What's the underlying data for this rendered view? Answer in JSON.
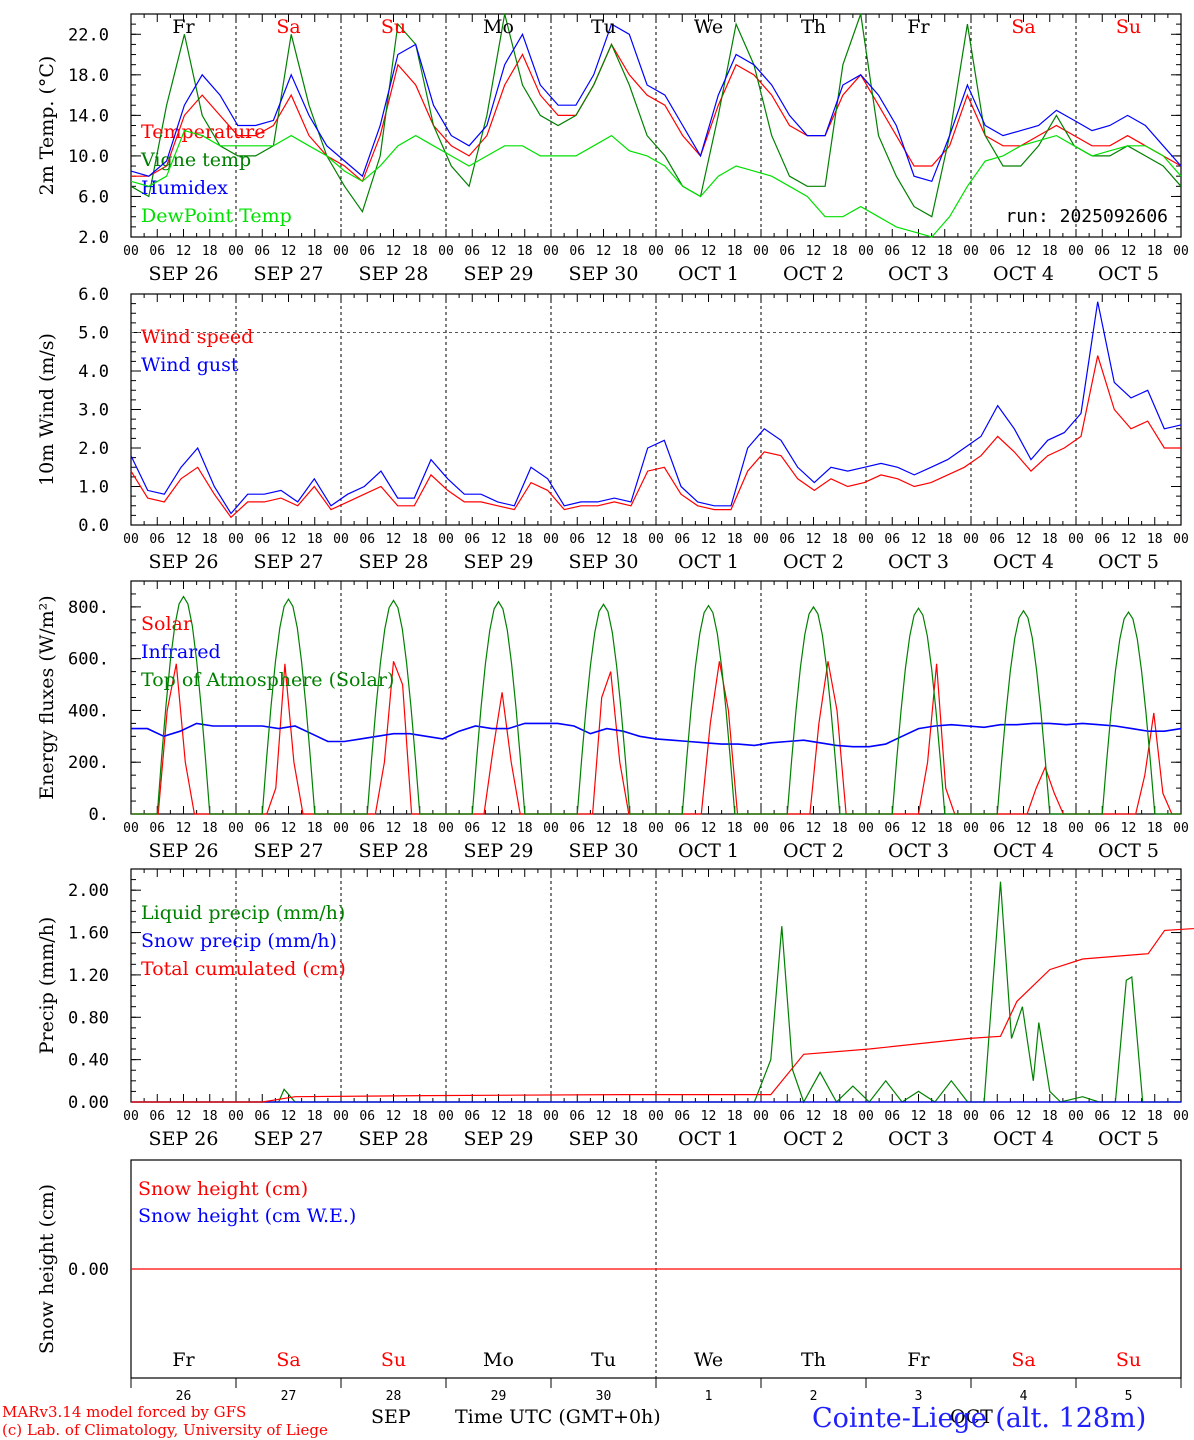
{
  "x_axis": {
    "start_tick": 0,
    "step_hours": 6,
    "hour_labels": [
      "00",
      "06",
      "12",
      "18"
    ],
    "date_labels": [
      "SEP 26",
      "SEP 27",
      "SEP 28",
      "SEP 29",
      "SEP 30",
      "OCT  1",
      "OCT  2",
      "OCT  3",
      "OCT  4",
      "OCT  5"
    ],
    "day_abbrev": [
      "Fr",
      "Sa",
      "Su",
      "Mo",
      "Tu",
      "We",
      "Th",
      "Fr",
      "Sa",
      "Su"
    ],
    "weekend_flags": [
      false,
      true,
      true,
      false,
      false,
      false,
      false,
      false,
      true,
      true
    ],
    "day_numbers": [
      "26",
      "27",
      "28",
      "29",
      "30",
      "1",
      "2",
      "3",
      "4",
      "5"
    ]
  },
  "colors": {
    "red": "#ff0000",
    "green": "#008000",
    "blue": "#0000ff",
    "lime": "#00e000",
    "axis": "#000000"
  },
  "chart_data": [
    {
      "type": "line",
      "id": "temperature",
      "ylabel": "2m Temp. (°C)",
      "ylim": [
        2,
        24
      ],
      "yticks": [
        "2.0",
        "6.0",
        "10.0",
        "14.0",
        "18.0",
        "22.0"
      ],
      "ytick_values": [
        2,
        6,
        10,
        14,
        18,
        22
      ],
      "annotation": "run: 2025092606",
      "series": [
        {
          "name": "Temperature",
          "color": "#ff0000",
          "values": [
            8,
            8,
            9,
            14,
            16,
            14,
            12,
            12,
            13,
            16,
            12,
            10,
            9,
            7.5,
            12,
            19,
            17,
            13,
            11,
            10,
            12,
            17,
            20,
            16,
            14,
            14,
            17,
            21,
            18,
            16,
            15,
            12,
            10,
            15,
            19,
            18,
            16,
            13,
            12,
            12,
            16,
            18,
            15,
            12,
            9,
            9,
            11,
            16,
            12,
            11,
            11,
            12,
            13,
            12,
            11,
            11,
            12,
            11,
            10,
            9
          ]
        },
        {
          "name": "Vigne temp",
          "color": "#008000",
          "values": [
            7,
            6,
            15,
            22,
            14,
            11,
            10,
            10,
            11,
            22,
            15,
            10,
            7,
            4.5,
            10,
            23,
            21,
            13,
            9,
            7,
            14,
            24,
            17,
            14,
            13,
            14,
            17,
            21,
            17,
            12,
            10,
            7,
            6,
            14,
            23,
            19,
            12,
            8,
            7,
            7,
            19,
            24,
            12,
            8,
            5,
            4,
            12,
            23,
            12,
            9,
            9,
            11,
            14,
            11,
            10,
            10,
            11,
            10,
            9,
            7
          ]
        },
        {
          "name": "Humidex",
          "color": "#0000ff",
          "values": [
            8.5,
            8,
            9.5,
            15,
            18,
            16,
            13,
            13,
            13.5,
            18,
            14,
            11,
            9.5,
            8,
            13,
            20,
            21,
            15,
            12,
            11,
            13,
            19,
            22,
            17,
            15,
            15,
            18,
            23,
            22,
            17,
            16,
            13,
            10,
            16,
            20,
            19,
            17,
            14,
            12,
            12,
            17,
            18,
            16,
            13,
            8,
            7.5,
            12,
            17,
            13,
            12,
            12.5,
            13,
            14.5,
            13.5,
            12.5,
            13,
            14,
            13,
            11,
            9
          ]
        },
        {
          "name": "DewPoint Temp",
          "color": "#00e000",
          "values": [
            7.5,
            7,
            8,
            12.5,
            12,
            11,
            11,
            11,
            11,
            12,
            11,
            10,
            8.5,
            7.5,
            9,
            11,
            12,
            11,
            10,
            9,
            10,
            11,
            11,
            10,
            10,
            10,
            11,
            12,
            10.5,
            10,
            9,
            7,
            6,
            8,
            9,
            8.5,
            8,
            7,
            6,
            4,
            4,
            5,
            4,
            3,
            2.5,
            2,
            4,
            7,
            9.5,
            10,
            11,
            11.5,
            12,
            11,
            10,
            10.5,
            11,
            11,
            10,
            8
          ]
        }
      ]
    },
    {
      "type": "line",
      "id": "wind",
      "ylabel": "10m Wind (m/s)",
      "ylim": [
        0,
        6
      ],
      "yticks": [
        "0.0",
        "1.0",
        "2.0",
        "3.0",
        "4.0",
        "5.0",
        "6.0"
      ],
      "ytick_values": [
        0,
        1,
        2,
        3,
        4,
        5,
        6
      ],
      "reference_line": 5,
      "series": [
        {
          "name": "Wind speed",
          "color": "#ff0000",
          "values": [
            1.4,
            0.7,
            0.6,
            1.2,
            1.5,
            0.8,
            0.2,
            0.6,
            0.6,
            0.7,
            0.5,
            1.0,
            0.4,
            0.6,
            0.8,
            1.0,
            0.5,
            0.5,
            1.3,
            0.9,
            0.6,
            0.6,
            0.5,
            0.4,
            1.1,
            0.9,
            0.4,
            0.5,
            0.5,
            0.6,
            0.5,
            1.4,
            1.5,
            0.8,
            0.5,
            0.4,
            0.4,
            1.4,
            1.9,
            1.8,
            1.2,
            0.9,
            1.2,
            1.0,
            1.1,
            1.3,
            1.2,
            1.0,
            1.1,
            1.3,
            1.5,
            1.8,
            2.3,
            1.9,
            1.4,
            1.8,
            2.0,
            2.3,
            4.4,
            3.0,
            2.5,
            2.7,
            2.0,
            2.0
          ]
        },
        {
          "name": "Wind gust",
          "color": "#0000ff",
          "values": [
            1.8,
            0.9,
            0.8,
            1.5,
            2.0,
            1.0,
            0.3,
            0.8,
            0.8,
            0.9,
            0.6,
            1.2,
            0.5,
            0.8,
            1.0,
            1.4,
            0.7,
            0.7,
            1.7,
            1.2,
            0.8,
            0.8,
            0.6,
            0.5,
            1.5,
            1.2,
            0.5,
            0.6,
            0.6,
            0.7,
            0.6,
            2.0,
            2.2,
            1.0,
            0.6,
            0.5,
            0.5,
            2.0,
            2.5,
            2.2,
            1.5,
            1.1,
            1.5,
            1.4,
            1.5,
            1.6,
            1.5,
            1.3,
            1.5,
            1.7,
            2.0,
            2.3,
            3.1,
            2.5,
            1.7,
            2.2,
            2.4,
            2.9,
            5.8,
            3.7,
            3.3,
            3.5,
            2.5,
            2.6
          ]
        }
      ]
    },
    {
      "type": "line",
      "id": "energy",
      "ylabel": "Energy fluxes (W/m²)",
      "ylim": [
        0,
        900
      ],
      "yticks": [
        "0.",
        "200.",
        "400.",
        "600.",
        "800."
      ],
      "ytick_values": [
        0,
        200,
        400,
        600,
        800
      ],
      "series": [
        {
          "name": "Solar",
          "color": "#ff0000",
          "values": [
            0,
            0,
            0,
            0,
            400,
            580,
            200,
            0,
            0,
            0,
            0,
            0,
            0,
            0,
            0,
            0,
            100,
            580,
            200,
            0,
            0,
            0,
            0,
            0,
            0,
            0,
            0,
            0,
            200,
            590,
            500,
            0,
            0,
            0,
            0,
            0,
            0,
            0,
            0,
            0,
            250,
            470,
            200,
            0,
            0,
            0,
            0,
            0,
            0,
            0,
            0,
            0,
            450,
            550,
            200,
            0,
            0,
            0,
            0,
            0,
            0,
            0,
            0,
            0,
            350,
            590,
            400,
            0,
            0,
            0,
            0,
            0,
            0,
            0,
            0,
            0,
            350,
            590,
            400,
            0,
            0,
            0,
            0,
            0,
            0,
            0,
            0,
            0,
            200,
            580,
            100,
            0,
            0,
            0,
            0,
            0,
            0,
            0,
            0,
            0,
            100,
            180,
            80,
            0,
            0,
            0,
            0,
            0,
            0,
            0,
            0,
            0,
            150,
            390,
            80,
            0,
            0
          ]
        },
        {
          "name": "Infrared",
          "color": "#0000ff",
          "values": [
            330,
            330,
            300,
            320,
            350,
            340,
            340,
            340,
            340,
            330,
            340,
            310,
            280,
            280,
            290,
            300,
            310,
            310,
            300,
            290,
            320,
            340,
            330,
            330,
            350,
            350,
            350,
            340,
            310,
            330,
            320,
            300,
            290,
            285,
            280,
            275,
            270,
            270,
            265,
            275,
            280,
            285,
            275,
            265,
            260,
            260,
            270,
            300,
            330,
            340,
            345,
            340,
            335,
            345,
            345,
            350,
            350,
            345,
            350,
            345,
            340,
            330,
            320,
            320,
            330
          ]
        },
        {
          "name": "Top of Atmosphere (Solar)",
          "color": "#008000",
          "values_per_day_peak": [
            840,
            830,
            825,
            820,
            810,
            805,
            800,
            795,
            785,
            780
          ],
          "daylight_hours": [
            6,
            18
          ]
        }
      ]
    },
    {
      "type": "line",
      "id": "precip",
      "ylabel": "Precip (mm/h)",
      "ylim": [
        0,
        2.2
      ],
      "yticks": [
        "0.00",
        "0.40",
        "0.80",
        "1.20",
        "1.60",
        "2.00"
      ],
      "ytick_values": [
        0,
        0.4,
        0.8,
        1.2,
        1.6,
        2.0
      ],
      "series": [
        {
          "name": "Liquid precip (mm/h)",
          "color": "#008000",
          "points": [
            [
              0,
              0
            ],
            [
              54,
              0
            ],
            [
              56,
              0.12
            ],
            [
              60,
              0
            ],
            [
              228,
              0
            ],
            [
              234,
              0.4
            ],
            [
              238,
              1.66
            ],
            [
              242,
              0.3
            ],
            [
              246,
              0
            ],
            [
              252,
              0.28
            ],
            [
              258,
              0
            ],
            [
              264,
              0.15
            ],
            [
              270,
              0
            ],
            [
              276,
              0.2
            ],
            [
              282,
              0
            ],
            [
              288,
              0.1
            ],
            [
              294,
              0
            ],
            [
              300,
              0.2
            ],
            [
              306,
              0
            ],
            [
              312,
              0
            ],
            [
              314,
              0.7
            ],
            [
              318,
              2.08
            ],
            [
              322,
              0.6
            ],
            [
              326,
              0.9
            ],
            [
              330,
              0.2
            ],
            [
              332,
              0.75
            ],
            [
              336,
              0.1
            ],
            [
              340,
              0
            ],
            [
              348,
              0.05
            ],
            [
              354,
              0
            ],
            [
              360,
              0
            ],
            [
              364,
              1.15
            ],
            [
              366,
              1.18
            ],
            [
              370,
              0
            ],
            [
              384,
              0
            ]
          ]
        },
        {
          "name": "Snow precip (mm/h)",
          "color": "#0000ff",
          "points": [
            [
              0,
              0
            ],
            [
              384,
              0
            ]
          ]
        },
        {
          "name": "Total cumulated (cm)",
          "color": "#ff0000",
          "points": [
            [
              0,
              0
            ],
            [
              48,
              0
            ],
            [
              60,
              0.05
            ],
            [
              108,
              0.06
            ],
            [
              180,
              0.07
            ],
            [
              234,
              0.07
            ],
            [
              246,
              0.45
            ],
            [
              270,
              0.5
            ],
            [
              306,
              0.6
            ],
            [
              318,
              0.62
            ],
            [
              324,
              0.95
            ],
            [
              336,
              1.25
            ],
            [
              348,
              1.35
            ],
            [
              372,
              1.4
            ],
            [
              378,
              1.62
            ],
            [
              396,
              1.65
            ]
          ]
        }
      ]
    },
    {
      "type": "line",
      "id": "snow",
      "ylabel": "Snow height (cm)",
      "ylim": [
        -1,
        1
      ],
      "yticks": [
        "0.00"
      ],
      "ytick_values": [
        0
      ],
      "series": [
        {
          "name": "Snow height (cm)",
          "color": "#ff0000",
          "values": [
            0,
            0
          ]
        },
        {
          "name": "Snow height (cm W.E.)",
          "color": "#0000ff",
          "values": []
        }
      ]
    }
  ],
  "footer": {
    "credit_line1": "MARv3.14 model forced by GFS",
    "credit_line2": "(c) Lab. of Climatology, University of Liege",
    "month_left": "SEP",
    "month_right": "OCT",
    "axis_title": "Time UTC (GMT+0h)",
    "station": "Cointe-Liege (alt. 128m)"
  }
}
